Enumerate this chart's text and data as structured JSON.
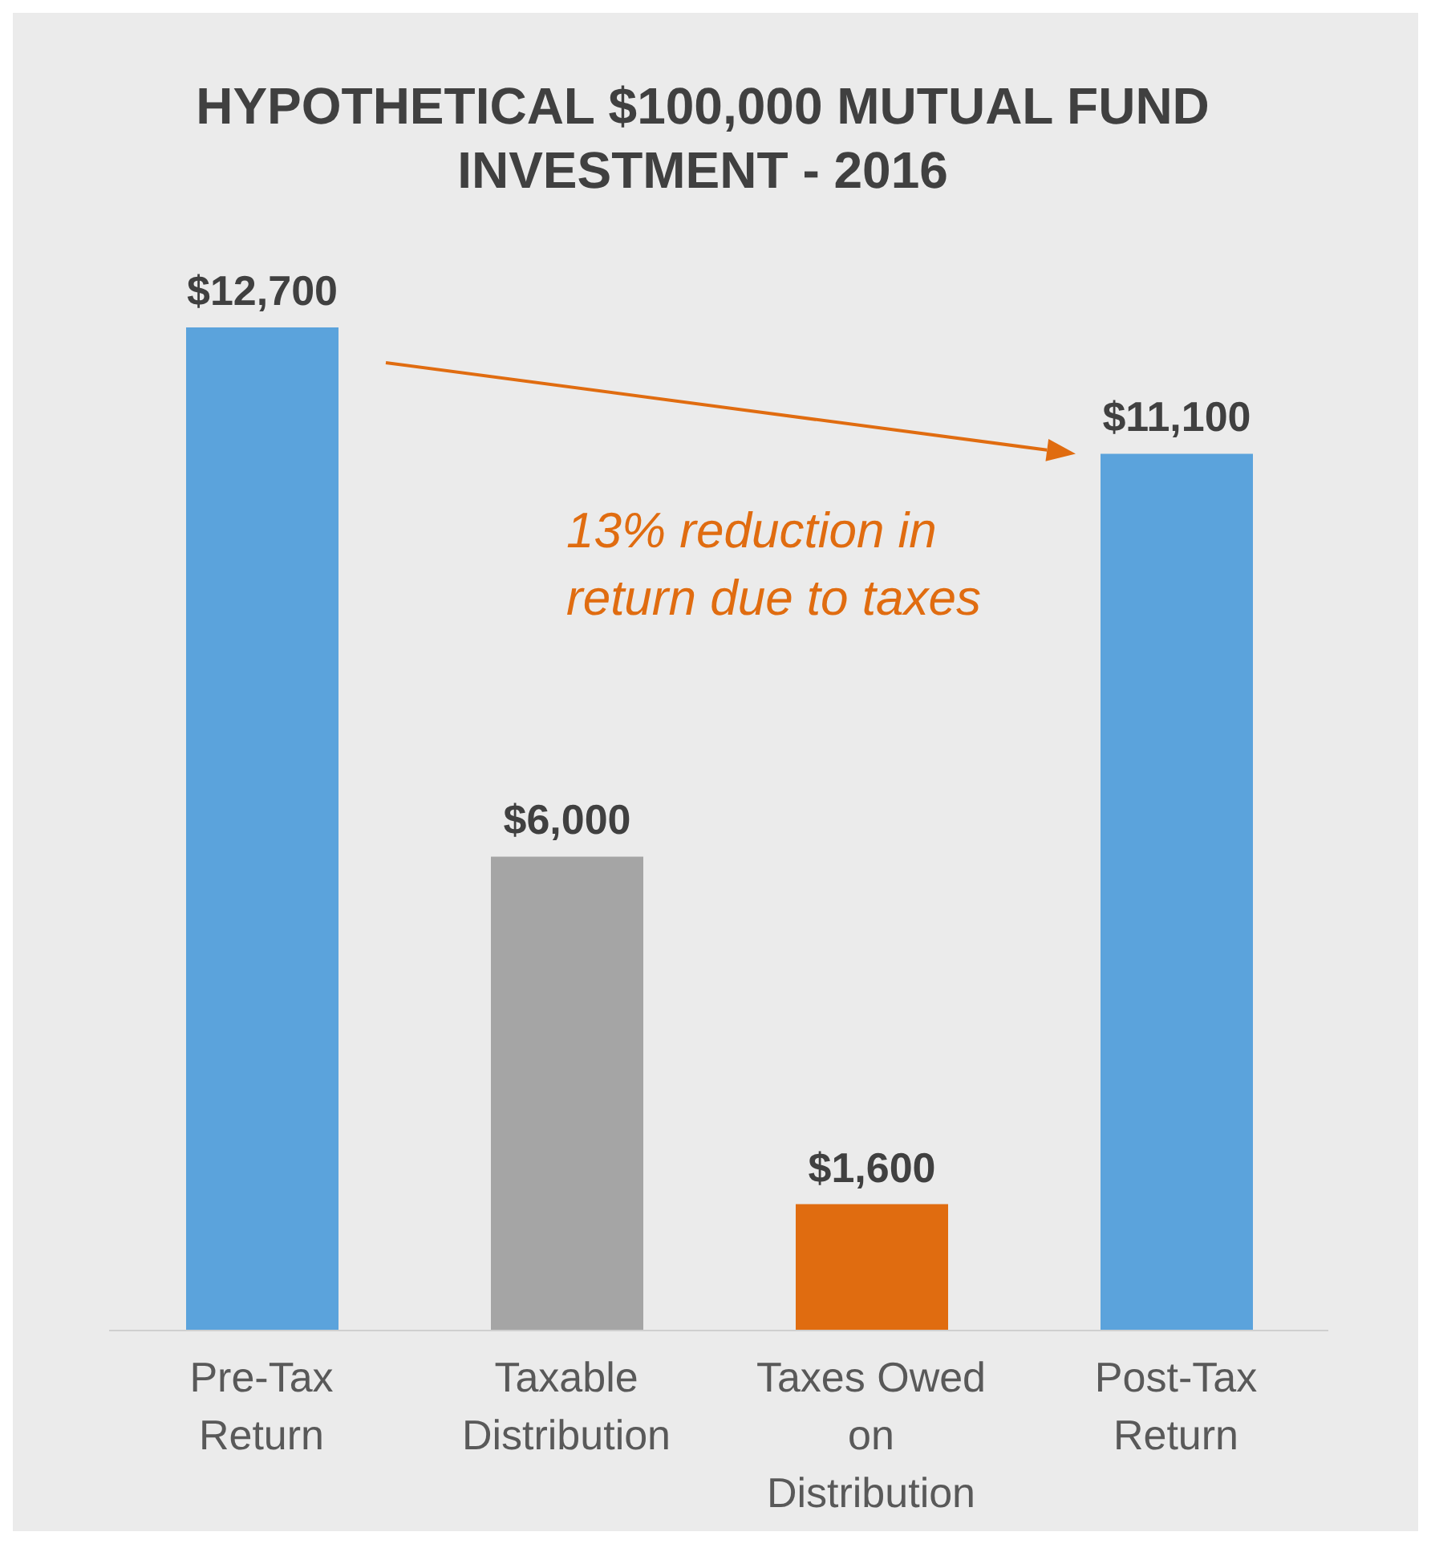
{
  "chart_data": {
    "type": "bar",
    "title": "HYPOTHETICAL $100,000 MUTUAL FUND INVESTMENT - 2016",
    "categories": [
      "Pre-Tax Return",
      "Taxable Distribution",
      "Taxes Owed on Distribution",
      "Post-Tax Return"
    ],
    "values": [
      12700,
      6000,
      1600,
      11100
    ],
    "colors": [
      "#5ba3dc",
      "#a5a5a5",
      "#e06c10",
      "#5ba3dc"
    ],
    "value_labels": [
      "$12,700",
      "$6,000",
      "$1,600",
      "$11,100"
    ],
    "annotations": [
      "13% reduction in return due to taxes"
    ],
    "grid": false,
    "legend": false
  }
}
